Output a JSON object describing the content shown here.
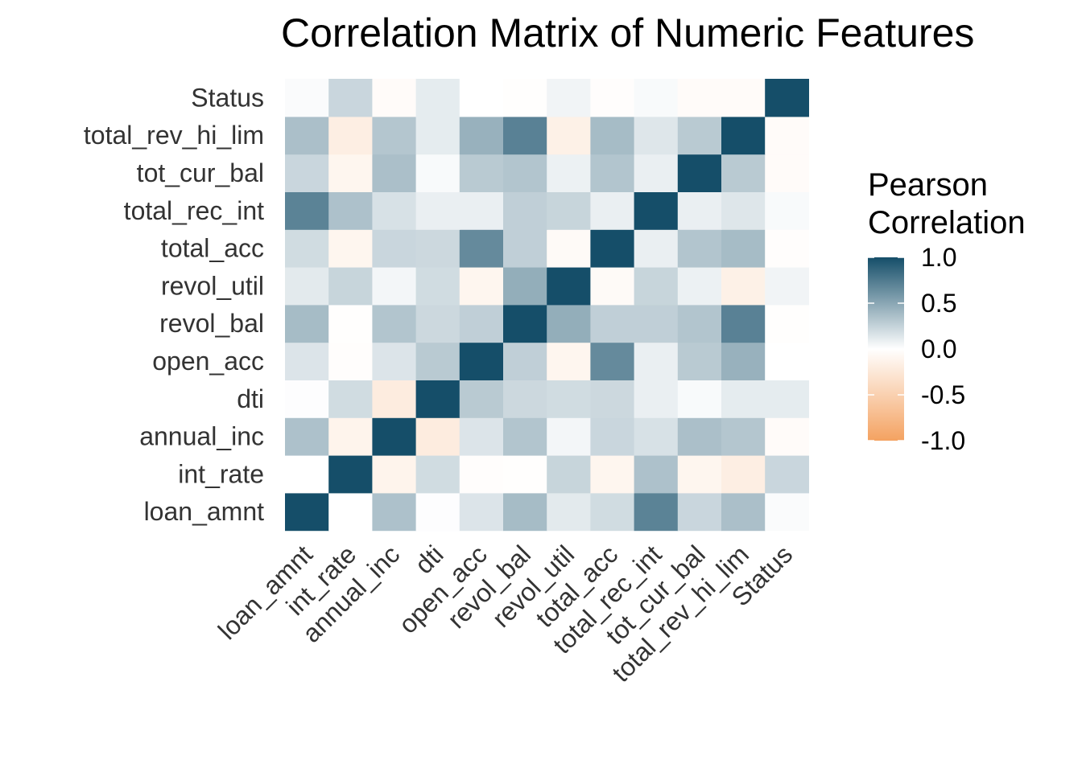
{
  "chart_data": {
    "type": "heatmap",
    "title": "Correlation Matrix of Numeric Features",
    "xlabel": "",
    "ylabel": "",
    "variables": [
      "loan_amnt",
      "int_rate",
      "annual_inc",
      "dti",
      "open_acc",
      "revol_bal",
      "revol_util",
      "total_acc",
      "total_rec_int",
      "tot_cur_bal",
      "total_rev_hi_lim",
      "Status"
    ],
    "matrix": [
      [
        1.0,
        0.0,
        0.35,
        0.01,
        0.15,
        0.38,
        0.12,
        0.2,
        0.7,
        0.23,
        0.36,
        0.02
      ],
      [
        0.0,
        1.0,
        -0.12,
        0.2,
        -0.02,
        -0.01,
        0.24,
        -0.1,
        0.35,
        -0.1,
        -0.18,
        0.23
      ],
      [
        0.35,
        -0.12,
        1.0,
        -0.2,
        0.15,
        0.33,
        0.05,
        0.23,
        0.17,
        0.36,
        0.32,
        -0.04
      ],
      [
        0.01,
        0.2,
        -0.2,
        1.0,
        0.3,
        0.22,
        0.2,
        0.22,
        0.09,
        0.03,
        0.11,
        0.11
      ],
      [
        0.15,
        -0.02,
        0.15,
        0.3,
        1.0,
        0.27,
        -0.1,
        0.66,
        0.09,
        0.3,
        0.44,
        0.0
      ],
      [
        0.38,
        -0.01,
        0.33,
        0.22,
        0.27,
        1.0,
        0.46,
        0.27,
        0.27,
        0.33,
        0.71,
        -0.01
      ],
      [
        0.12,
        0.24,
        0.05,
        0.2,
        -0.1,
        0.46,
        1.0,
        -0.05,
        0.24,
        0.08,
        -0.15,
        0.06
      ],
      [
        0.2,
        -0.1,
        0.23,
        0.22,
        0.66,
        0.27,
        -0.05,
        1.0,
        0.09,
        0.33,
        0.38,
        -0.02
      ],
      [
        0.7,
        0.35,
        0.17,
        0.09,
        0.09,
        0.27,
        0.24,
        0.09,
        1.0,
        0.09,
        0.14,
        0.03
      ],
      [
        0.23,
        -0.1,
        0.36,
        0.03,
        0.3,
        0.33,
        0.08,
        0.33,
        0.09,
        1.0,
        0.3,
        -0.04
      ],
      [
        0.36,
        -0.18,
        0.32,
        0.11,
        0.44,
        0.71,
        -0.15,
        0.38,
        0.14,
        0.3,
        1.0,
        -0.04
      ],
      [
        0.02,
        0.23,
        -0.04,
        0.11,
        0.0,
        -0.01,
        0.06,
        -0.02,
        0.03,
        -0.04,
        -0.04,
        1.0
      ]
    ],
    "legend": {
      "title_lines": [
        "Pearson",
        "Correlation"
      ],
      "ticks": [
        "1.0",
        "0.5",
        "0.0",
        "-0.5",
        "-1.0"
      ],
      "tick_values": [
        1.0,
        0.5,
        0.0,
        -0.5,
        -1.0
      ],
      "placement": "right"
    },
    "color_scale": {
      "low": "#f4a261",
      "mid": "#ffffff",
      "high": "#154e69",
      "domain": [
        -1,
        0,
        1
      ]
    },
    "grid": false
  }
}
